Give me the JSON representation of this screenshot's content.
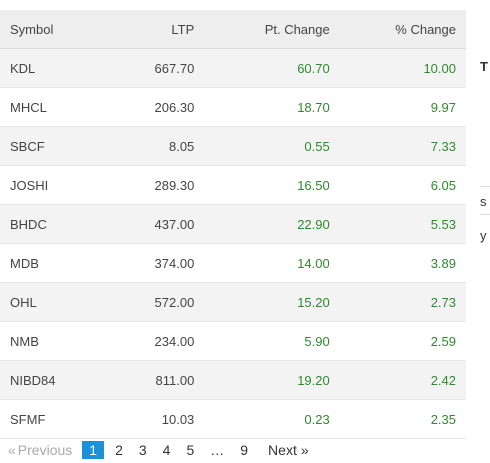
{
  "table": {
    "headers": {
      "symbol": "Symbol",
      "ltp": "LTP",
      "pt_change": "Pt. Change",
      "pct_change": "% Change"
    },
    "rows": [
      {
        "symbol": "KDL",
        "ltp": "667.70",
        "pt_change": "60.70",
        "pct_change": "10.00"
      },
      {
        "symbol": "MHCL",
        "ltp": "206.30",
        "pt_change": "18.70",
        "pct_change": "9.97"
      },
      {
        "symbol": "SBCF",
        "ltp": "8.05",
        "pt_change": "0.55",
        "pct_change": "7.33"
      },
      {
        "symbol": "JOSHI",
        "ltp": "289.30",
        "pt_change": "16.50",
        "pct_change": "6.05"
      },
      {
        "symbol": "BHDC",
        "ltp": "437.00",
        "pt_change": "22.90",
        "pct_change": "5.53"
      },
      {
        "symbol": "MDB",
        "ltp": "374.00",
        "pt_change": "14.00",
        "pct_change": "3.89"
      },
      {
        "symbol": "OHL",
        "ltp": "572.00",
        "pt_change": "15.20",
        "pct_change": "2.73"
      },
      {
        "symbol": "NMB",
        "ltp": "234.00",
        "pt_change": "5.90",
        "pct_change": "2.59"
      },
      {
        "symbol": "NIBD84",
        "ltp": "811.00",
        "pt_change": "19.20",
        "pct_change": "2.42"
      },
      {
        "symbol": "SFMF",
        "ltp": "10.03",
        "pt_change": "0.23",
        "pct_change": "2.35"
      }
    ]
  },
  "pagination": {
    "first_symbol": "«",
    "previous_label": "Previous",
    "pages": [
      "1",
      "2",
      "3",
      "4",
      "5",
      "…",
      "9"
    ],
    "active_page": "1",
    "next_label": "Next",
    "last_symbol": "»"
  },
  "edge_fragments": {
    "top": "T",
    "s_fragment": "s",
    "y_fragment": "y"
  },
  "colors": {
    "positive": "#2e8b2e",
    "active_page": "#1e90d8",
    "header_bg": "#eeeeee"
  }
}
